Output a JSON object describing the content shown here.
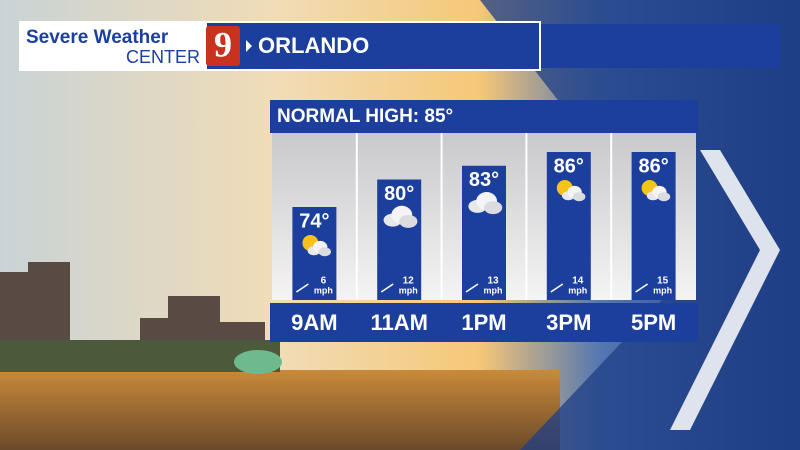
{
  "header": {
    "brand_top": "Severe Weather",
    "brand_bottom": "CENTER",
    "logo": "9",
    "location": "ORLANDO"
  },
  "chart_data": {
    "type": "bar",
    "title": "NORMAL HIGH: 85°",
    "categories": [
      "9AM",
      "11AM",
      "1PM",
      "3PM",
      "5PM"
    ],
    "values": [
      74,
      80,
      83,
      86,
      86
    ],
    "value_labels": [
      "74°",
      "80°",
      "83°",
      "86°",
      "86°"
    ],
    "color": "#1c3f9e",
    "wind": {
      "values": [
        6,
        12,
        13,
        14,
        15
      ],
      "unit": "mph"
    }
  }
}
